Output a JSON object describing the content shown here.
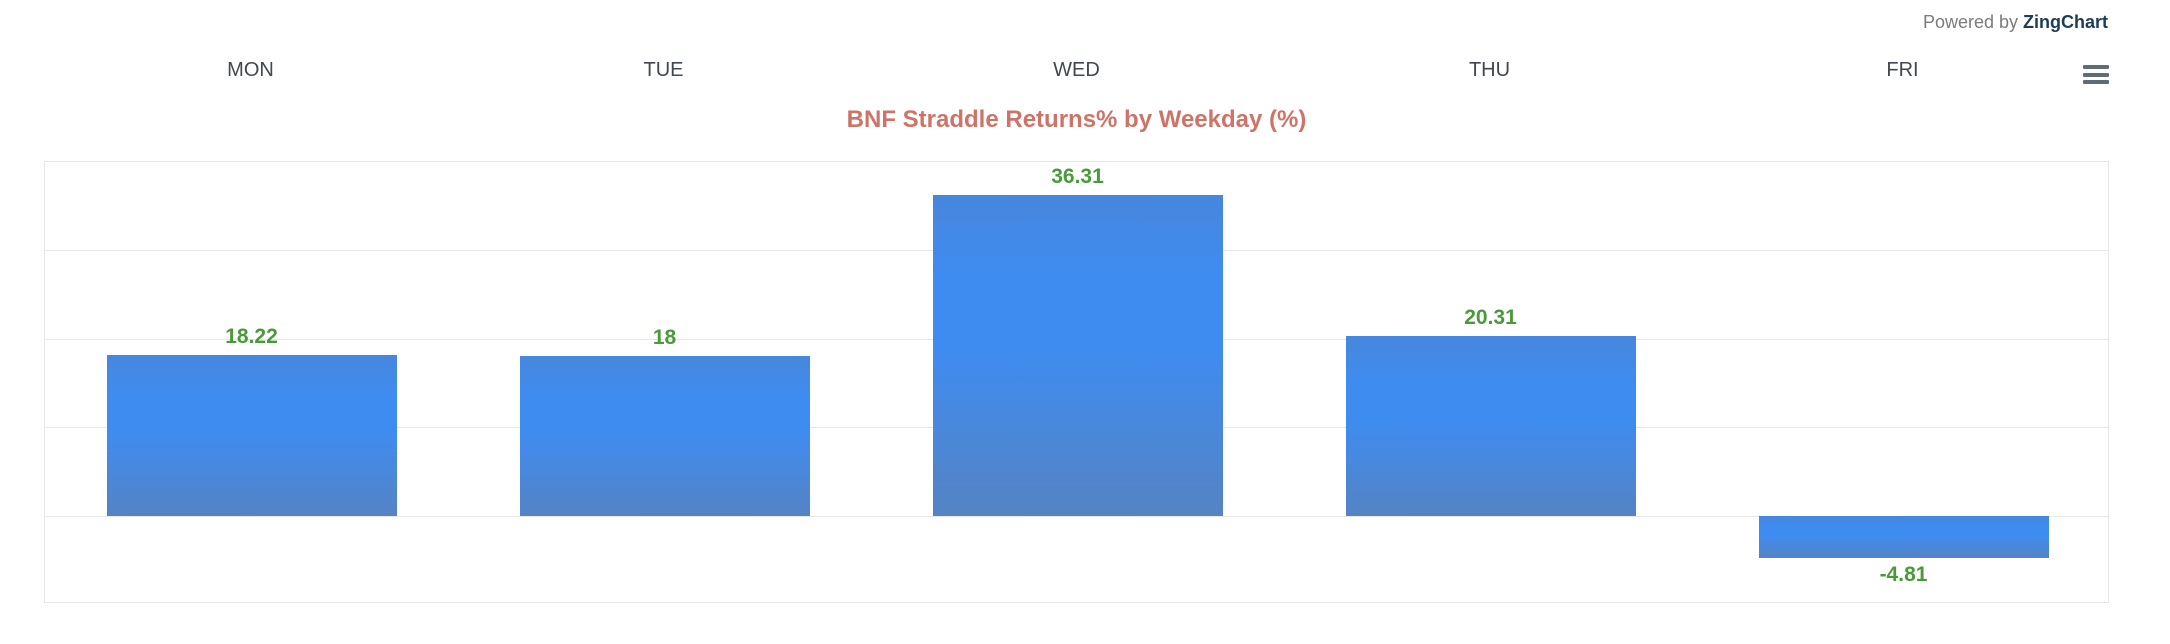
{
  "branding": {
    "powered_by": "Powered by",
    "brand": "ZingChart"
  },
  "theme": {
    "bar_color_top": "#4787dd",
    "bar_color_bright": "#3f8cf0",
    "bar_color_bottom": "#5583c4",
    "value_label_color": "#4a9a3a",
    "title_color": "#cd7468",
    "axis_label_color": "#40494f",
    "brand_color": "#1e3d56",
    "powered_by_color": "#7b7b7b",
    "grid_color": "#e7e7e7",
    "menu_icon_color": "#5d6c77"
  },
  "chart_data": {
    "type": "bar",
    "title": "BNF Straddle Returns% by Weekday (%)",
    "categories": [
      "MON",
      "TUE",
      "WED",
      "THU",
      "FRI"
    ],
    "values": [
      18.22,
      18,
      36.31,
      20.31,
      -4.81
    ],
    "value_labels": [
      "18.22",
      "18",
      "36.31",
      "20.31",
      "-4.81"
    ],
    "series_name": "BNF Straddle Returns%",
    "ylim": [
      -10,
      40
    ],
    "grid_step": 10,
    "grid": "horizontal",
    "legend": false,
    "category_axis_position": "top",
    "value_axis_labels_visible": false
  }
}
